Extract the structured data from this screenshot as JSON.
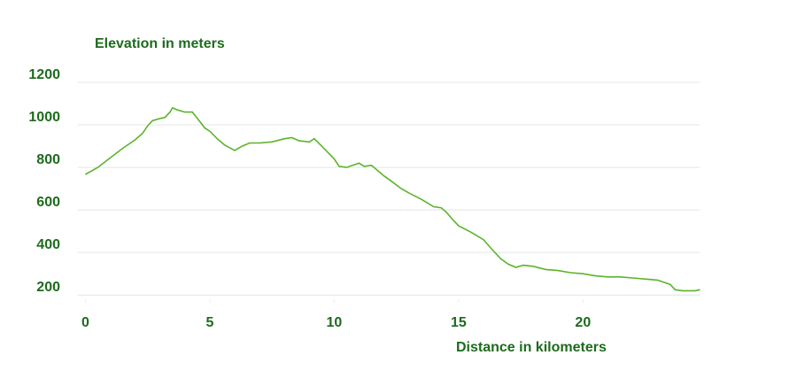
{
  "chart_data": {
    "type": "line",
    "title": "Elevation in meters",
    "x_label": "Distance in kilometers",
    "xlim": [
      -0.3,
      24.9
    ],
    "ylim": [
      180,
      1200
    ],
    "xticks": [
      0,
      5,
      10,
      15,
      20
    ],
    "yticks": [
      200,
      400,
      600,
      800,
      1000,
      1200
    ],
    "grid": true,
    "series": [
      {
        "color": "#5cb32a",
        "x": [
          0,
          0.5,
          1,
          1.5,
          2,
          2.3,
          2.5,
          2.7,
          3,
          3.2,
          3.4,
          3.5,
          3.7,
          4,
          4.3,
          4.5,
          4.8,
          5,
          5.3,
          5.6,
          6,
          6.3,
          6.6,
          7,
          7.5,
          8,
          8.3,
          8.6,
          9,
          9.2,
          9.5,
          10,
          10.2,
          10.5,
          11,
          11.2,
          11.5,
          12,
          12.3,
          12.7,
          13,
          13.5,
          14,
          14.3,
          14.5,
          14.8,
          15,
          15.5,
          16,
          16.3,
          16.7,
          17,
          17.3,
          17.6,
          18,
          18.5,
          19,
          19.5,
          20,
          20.5,
          21,
          21.5,
          22,
          22.5,
          23,
          23.5,
          23.7,
          24,
          24.5,
          24.7
        ],
        "values": [
          767,
          800,
          845,
          890,
          930,
          960,
          995,
          1020,
          1030,
          1035,
          1060,
          1080,
          1070,
          1060,
          1060,
          1030,
          985,
          970,
          935,
          905,
          880,
          900,
          915,
          915,
          920,
          935,
          940,
          925,
          920,
          935,
          900,
          840,
          805,
          800,
          820,
          805,
          810,
          760,
          735,
          700,
          680,
          650,
          615,
          610,
          590,
          550,
          525,
          495,
          460,
          420,
          370,
          345,
          330,
          340,
          335,
          320,
          315,
          305,
          300,
          290,
          285,
          285,
          280,
          275,
          270,
          250,
          225,
          220,
          220,
          225
        ]
      }
    ]
  }
}
